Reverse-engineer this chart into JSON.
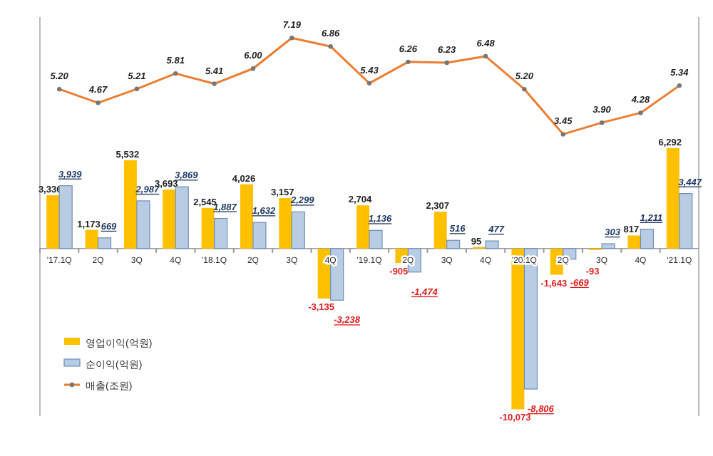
{
  "chart_data": {
    "type": "bar",
    "categories": [
      "'17.1Q",
      "2Q",
      "3Q",
      "4Q",
      "'18.1Q",
      "2Q",
      "3Q",
      "4Q",
      "'19.1Q",
      "2Q",
      "3Q",
      "4Q",
      "'20.1Q",
      "2Q",
      "3Q",
      "4Q",
      "'21.1Q"
    ],
    "series": [
      {
        "name": "영업이익(억원)",
        "type": "bar",
        "color": "#ffc000",
        "values": [
          3336,
          1173,
          5532,
          3693,
          2545,
          4026,
          3157,
          -3135,
          2704,
          -905,
          2307,
          95,
          -10073,
          -1643,
          -93,
          817,
          6292
        ],
        "value_labels": [
          "3,336",
          "1,173",
          "5,532",
          "3,693",
          "2,545",
          "4,026",
          "3,157",
          "-3,135",
          "2,704",
          "-905",
          "2,307",
          "95",
          "-10,073",
          "-1,643",
          "-93",
          "817",
          "6,292"
        ]
      },
      {
        "name": "순이익(억원)",
        "type": "bar",
        "color": "#b8cce4",
        "values": [
          3939,
          669,
          2987,
          3869,
          1887,
          1632,
          2299,
          -3238,
          1136,
          -1474,
          516,
          477,
          -8806,
          -669,
          303,
          1211,
          3447
        ],
        "value_labels": [
          "3,939",
          "669",
          "2,987",
          "3,869",
          "1,887",
          "1,632",
          "2,299",
          "-3,238",
          "1,136",
          "-1,474",
          "516",
          "477",
          "-8,806",
          "-669",
          "303",
          "1,211",
          "3,447"
        ]
      },
      {
        "name": "매출(조원)",
        "type": "line",
        "axis": "y2",
        "color": "#ed7d31",
        "values": [
          5.2,
          4.67,
          5.21,
          5.81,
          5.41,
          6.0,
          7.19,
          6.86,
          5.43,
          6.26,
          6.23,
          6.48,
          5.2,
          3.45,
          3.9,
          4.28,
          5.34
        ],
        "value_labels": [
          "5.20",
          "4.67",
          "5.21",
          "5.81",
          "5.41",
          "6.00",
          "7.19",
          "6.86",
          "5.43",
          "6.26",
          "6.23",
          "6.48",
          "5.20",
          "3.45",
          "3.90",
          "4.28",
          "5.34"
        ]
      }
    ],
    "ylim": [
      -10500,
      14500
    ],
    "y2lim": [
      -7.5,
      8
    ],
    "tick_labels": false,
    "legend": "bottom left",
    "marker": "circle",
    "line_style": "solid"
  }
}
